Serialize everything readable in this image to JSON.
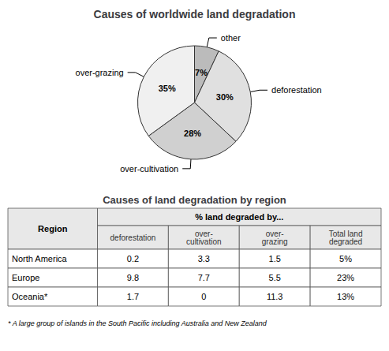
{
  "chart_data": [
    {
      "type": "pie",
      "title": "Causes of worldwide land degradation",
      "categories": [
        "other",
        "deforestation",
        "over-cultivation",
        "over-grazing"
      ],
      "values": [
        7,
        30,
        28,
        35
      ],
      "value_labels": [
        "7%",
        "30%",
        "28%",
        "35%"
      ],
      "colors": [
        "#bbbbbb",
        "#e0e0e0",
        "#d0d0d0",
        "#f0f0f0"
      ],
      "data_labels": true
    },
    {
      "type": "table",
      "title": "Causes of land degradation by region",
      "row_header": "Region",
      "column_header": "% land degraded by...",
      "categories": [
        "North America",
        "Europe",
        "Oceania*"
      ],
      "series": [
        {
          "name": "deforestation",
          "values": [
            0.2,
            9.8,
            1.7
          ]
        },
        {
          "name": "over-\ncultivation",
          "values": [
            3.3,
            7.7,
            0
          ]
        },
        {
          "name": "over-\ngrazing",
          "values": [
            1.5,
            5.5,
            11.3
          ]
        },
        {
          "name": "Total land\ndegraded",
          "values": [
            5,
            23,
            13
          ],
          "value_labels": [
            "5%",
            "23%",
            "13%"
          ]
        }
      ],
      "footnote": "* A large group of islands in the South Pacific including Australia and New Zealand"
    }
  ]
}
